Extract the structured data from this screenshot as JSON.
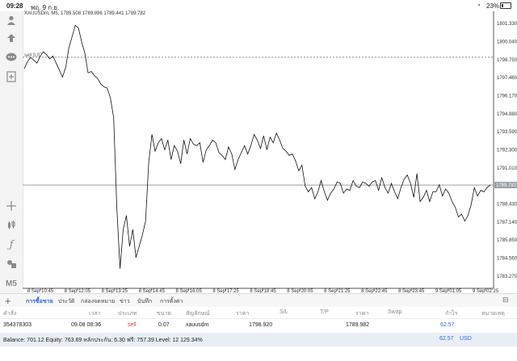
{
  "status_bar": {
    "time": "09:28",
    "date": "พฤ. 9 ก.ย.",
    "battery_percent": "23%",
    "battery_level": 0.23,
    "wifi_icon": "wifi-icon"
  },
  "toolbar": {
    "icons": [
      "person-icon",
      "trade-icon",
      "chat-icon",
      "add-chart-icon",
      "crosshair-icon",
      "candles-icon",
      "function-icon",
      "objects-icon"
    ],
    "timeframe": "M5"
  },
  "chart_header": {
    "symbol_info": "XAUUSDm, M5, 1789.508 1789.896 1789.441 1789.782",
    "sell_marker": "sell 0.07"
  },
  "chart_data": {
    "type": "line",
    "symbol": "XAUUSDm",
    "timeframe": "M5",
    "ohlc": {
      "open": 1789.508,
      "high": 1789.896,
      "low": 1789.441,
      "close": 1789.782
    },
    "ylim": [
      1782.4,
      1802.2
    ],
    "y_ticks": [
      "1801.330",
      "1800.040",
      "1798.750",
      "1797.460",
      "1796.170",
      "1794.880",
      "1793.590",
      "1792.300",
      "1791.010",
      "1789.782",
      "1788.430",
      "1787.140",
      "1785.850",
      "1784.560",
      "1783.270"
    ],
    "x_ticks": [
      "8 Sep 10:45",
      "8 Sep 12:05",
      "8 Sep 13:25",
      "8 Sep 14:45",
      "8 Sep 16:05",
      "8 Sep 17:25",
      "8 Sep 18:45",
      "8 Sep 20:05",
      "8 Sep 21:25",
      "8 Sep 22:45",
      "8 Sep 23:45",
      "9 Sep 01:05",
      "9 Sep 02:25"
    ],
    "price_line": 1798.92,
    "current_price": 1789.782,
    "grid": false,
    "series": [
      {
        "x": [
          0,
          1,
          2,
          3,
          4,
          5,
          6,
          7,
          8,
          9,
          10,
          11,
          12,
          13,
          14,
          15,
          16,
          17,
          18,
          19,
          20,
          21,
          22,
          23,
          24,
          25,
          26,
          27,
          28,
          29,
          30,
          31,
          32,
          33,
          34,
          35,
          36,
          37,
          38,
          39,
          40,
          41,
          42,
          43,
          44,
          45,
          46,
          47,
          48,
          49,
          50,
          51,
          52,
          53,
          54,
          55,
          56,
          57,
          58,
          59,
          60,
          61,
          62,
          63,
          64,
          65,
          66,
          67,
          68,
          69,
          70,
          71,
          72,
          73,
          74,
          75,
          76,
          77,
          78,
          79,
          80,
          81,
          82,
          83,
          84,
          85,
          86,
          87,
          88,
          89,
          90,
          91,
          92,
          93,
          94,
          95,
          96,
          97,
          98,
          99,
          100,
          101,
          102,
          103,
          104,
          105,
          106,
          107,
          108,
          109,
          110,
          111,
          112,
          113,
          114,
          115,
          116,
          117,
          118,
          119,
          120,
          121,
          122,
          123,
          124,
          125,
          126,
          127,
          128,
          129,
          130,
          131,
          132,
          133,
          134,
          135,
          136,
          137,
          138,
          139,
          140,
          141,
          142,
          143,
          144,
          145,
          146
        ],
        "y": [
          1798.1,
          1798.6,
          1798.9,
          1798.7,
          1798.5,
          1799.0,
          1799.3,
          1799.1,
          1798.8,
          1799.0,
          1798.5,
          1798.0,
          1797.5,
          1798.2,
          1799.6,
          1800.4,
          1801.2,
          1801.0,
          1800.0,
          1799.2,
          1797.8,
          1797.9,
          1797.6,
          1797.4,
          1797.0,
          1796.8,
          1796.7,
          1796.0,
          1794.6,
          1788.2,
          1783.8,
          1786.6,
          1787.6,
          1785.4,
          1786.6,
          1784.6,
          1785.4,
          1786.2,
          1787.2,
          1791.4,
          1793.4,
          1792.2,
          1792.8,
          1793.1,
          1792.3,
          1793.0,
          1791.6,
          1792.6,
          1792.2,
          1791.3,
          1793.0,
          1792.0,
          1793.1,
          1792.7,
          1792.6,
          1792.8,
          1791.4,
          1792.3,
          1792.6,
          1793.0,
          1792.8,
          1792.1,
          1791.9,
          1791.6,
          1792.5,
          1792.0,
          1790.9,
          1791.6,
          1792.1,
          1792.6,
          1792.0,
          1792.6,
          1793.4,
          1793.0,
          1792.4,
          1793.3,
          1792.3,
          1793.2,
          1792.8,
          1793.5,
          1793.0,
          1792.4,
          1792.2,
          1791.9,
          1792.0,
          1791.5,
          1790.8,
          1791.2,
          1789.7,
          1789.3,
          1789.6,
          1788.8,
          1789.3,
          1790.1,
          1789.3,
          1788.7,
          1789.2,
          1789.5,
          1790.0,
          1789.9,
          1789.2,
          1789.5,
          1789.4,
          1790.1,
          1789.7,
          1789.6,
          1790.0,
          1789.9,
          1789.7,
          1790.0,
          1790.1,
          1789.4,
          1790.3,
          1789.6,
          1789.2,
          1789.9,
          1789.3,
          1788.8,
          1789.6,
          1790.2,
          1790.5,
          1789.9,
          1788.9,
          1790.6,
          1788.6,
          1788.9,
          1789.4,
          1788.6,
          1789.3,
          1789.3,
          1789.8,
          1789.0,
          1789.5,
          1789.2,
          1788.6,
          1788.2,
          1787.5,
          1787.7,
          1787.2,
          1787.6,
          1788.4,
          1789.6,
          1789.0,
          1789.4,
          1789.3,
          1789.6,
          1789.8
        ]
      }
    ]
  },
  "tabs": [
    "การซื้อขาย",
    "ประวัติ",
    "กล่องจดหมาย",
    "ข่าว",
    "บันทึก",
    "การตั้งค่า"
  ],
  "table": {
    "headers": [
      "คำสั่ง",
      "เวลา",
      "ประเภท",
      "ขนาด",
      "สัญลักษณ์",
      "ราคา",
      "S/L",
      "T/P",
      "ราคา",
      "Swap",
      "กำไร",
      "หมายเหตุ"
    ],
    "rows": [
      {
        "order": "354378303",
        "time": "09.08 08:36",
        "type": "sell",
        "size": "0.07",
        "symbol": "xauusdm",
        "price": "1798.920",
        "sl": "",
        "tp": "",
        "current_price": "1789.982",
        "swap": "",
        "profit": "62.57",
        "comment": ""
      }
    ]
  },
  "balance_bar": {
    "text": "Balance: 701.12 Equity: 763.69 หลักประกัน: 6.30 ฟรี: 757.39 Level: 12 129.34%",
    "total": "62.57",
    "currency": "USD"
  },
  "colors": {
    "accent": "#2b6cd4",
    "sell": "#e53935",
    "chart_line": "#111111",
    "toolbar_bg": "#f4f4f4",
    "balance_bg": "#e9eef5"
  }
}
